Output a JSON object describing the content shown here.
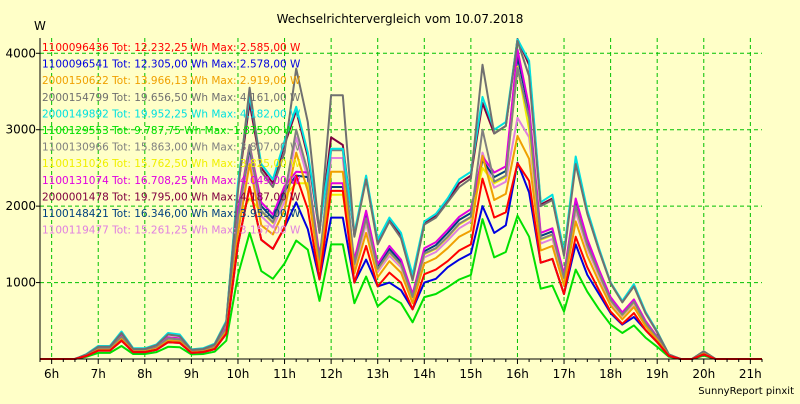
{
  "chart_data": {
    "type": "line",
    "title": "Wechselrichtervergleich vom 10.07.2018",
    "ylabel": "W",
    "xlabel": "",
    "ylim": [
      0,
      4200
    ],
    "xlim": [
      5.75,
      21.25
    ],
    "yticks": [
      1000,
      2000,
      3000,
      4000
    ],
    "xticks": [
      {
        "value": 6,
        "label": "6h"
      },
      {
        "value": 7,
        "label": "7h"
      },
      {
        "value": 8,
        "label": "8h"
      },
      {
        "value": 9,
        "label": "9h"
      },
      {
        "value": 10,
        "label": "10h"
      },
      {
        "value": 11,
        "label": "11h"
      },
      {
        "value": 12,
        "label": "12h"
      },
      {
        "value": 13,
        "label": "13h"
      },
      {
        "value": 14,
        "label": "14h"
      },
      {
        "value": 15,
        "label": "15h"
      },
      {
        "value": 16,
        "label": "16h"
      },
      {
        "value": 17,
        "label": "17h"
      },
      {
        "value": 18,
        "label": "18h"
      },
      {
        "value": 19,
        "label": "19h"
      },
      {
        "value": 20,
        "label": "20h"
      },
      {
        "value": 21,
        "label": "21h"
      }
    ],
    "grid": true,
    "legend_position": "top-left",
    "footer": "SunnyReport pinxit",
    "x": [
      5.75,
      6,
      6.25,
      6.5,
      6.75,
      7,
      7.25,
      7.5,
      7.75,
      8,
      8.25,
      8.5,
      8.75,
      9,
      9.25,
      9.5,
      9.75,
      10,
      10.25,
      10.5,
      10.75,
      11,
      11.25,
      11.5,
      11.75,
      12,
      12.25,
      12.5,
      12.75,
      13,
      13.25,
      13.5,
      13.75,
      14,
      14.25,
      14.5,
      14.75,
      15,
      15.25,
      15.5,
      15.75,
      16,
      16.25,
      16.5,
      16.75,
      17,
      17.25,
      17.5,
      17.75,
      18,
      18.25,
      18.5,
      18.75,
      19,
      19.25,
      19.5,
      19.75,
      20,
      20.25,
      20.5,
      20.75,
      21,
      21.25
    ],
    "series": [
      {
        "name": "1100096436 Tot: 12.232,25 Wh Max: 2.585,00 W",
        "color": "#ff0000",
        "values": [
          0,
          0,
          0,
          0,
          40,
          110,
          110,
          240,
          90,
          90,
          120,
          220,
          210,
          80,
          90,
          130,
          330,
          1500,
          2250,
          1560,
          1440,
          1720,
          2400,
          1960,
          1040,
          2200,
          2200,
          1000,
          1480,
          950,
          1130,
          1000,
          650,
          1110,
          1170,
          1280,
          1420,
          1500,
          2360,
          1850,
          1920,
          2560,
          2330,
          1260,
          1310,
          850,
          1600,
          1200,
          900,
          620,
          460,
          600,
          380,
          220,
          40,
          0,
          0,
          60,
          0,
          0,
          0,
          0,
          0
        ]
      },
      {
        "name": "1100096541 Tot: 12.305,00 Wh Max: 2.578,00 W",
        "color": "#0000e0",
        "values": [
          0,
          0,
          0,
          0,
          40,
          110,
          110,
          240,
          90,
          90,
          120,
          220,
          210,
          80,
          90,
          130,
          330,
          1500,
          2250,
          1560,
          1440,
          1720,
          2050,
          1700,
          1040,
          1850,
          1850,
          1000,
          1300,
          950,
          1000,
          900,
          650,
          1000,
          1050,
          1200,
          1300,
          1380,
          2000,
          1650,
          1750,
          2570,
          2180,
          1260,
          1310,
          850,
          1500,
          1100,
          850,
          600,
          450,
          550,
          380,
          220,
          40,
          0,
          0,
          60,
          0,
          0,
          0,
          0,
          0
        ]
      },
      {
        "name": "2000150622 Tot: 13.966,13 Wh Max: 2.919,00 W",
        "color": "#f0a000",
        "values": [
          0,
          0,
          0,
          0,
          45,
          120,
          120,
          260,
          100,
          100,
          135,
          240,
          230,
          90,
          100,
          145,
          360,
          1650,
          2550,
          1750,
          1630,
          1950,
          2700,
          2200,
          1170,
          2450,
          2450,
          1120,
          1650,
          1070,
          1280,
          1130,
          730,
          1250,
          1320,
          1450,
          1600,
          1680,
          2660,
          2080,
          2160,
          2919,
          2620,
          1420,
          1480,
          960,
          1800,
          1350,
          1010,
          700,
          520,
          680,
          430,
          250,
          45,
          0,
          0,
          70,
          0,
          0,
          0,
          0,
          0
        ]
      },
      {
        "name": "2000154799 Tot: 19.656,50 Wh Max: 4.161,00 W",
        "color": "#707070",
        "values": [
          0,
          0,
          0,
          0,
          60,
          160,
          160,
          340,
          130,
          130,
          180,
          320,
          300,
          120,
          130,
          190,
          480,
          2200,
          3550,
          2450,
          2250,
          2700,
          3800,
          3100,
          1650,
          3450,
          3450,
          1600,
          2350,
          1500,
          1800,
          1580,
          1030,
          1760,
          1850,
          2050,
          2250,
          2360,
          3850,
          2950,
          3050,
          4161,
          3700,
          2000,
          2080,
          1350,
          2550,
          1900,
          1420,
          990,
          740,
          950,
          600,
          350,
          60,
          0,
          0,
          100,
          0,
          0,
          0,
          0,
          0
        ]
      },
      {
        "name": "2000149892 Tot: 19.952,25 Wh Max: 4.182,00 W",
        "color": "#00e0e0",
        "values": [
          0,
          0,
          0,
          0,
          65,
          170,
          170,
          360,
          140,
          140,
          190,
          340,
          320,
          125,
          140,
          200,
          500,
          2300,
          3450,
          2550,
          2350,
          2850,
          3300,
          2700,
          1700,
          2750,
          2750,
          1650,
          2400,
          1560,
          1850,
          1650,
          1100,
          1800,
          1900,
          2100,
          2350,
          2450,
          3430,
          3000,
          3100,
          4182,
          3900,
          2050,
          2150,
          1400,
          2650,
          1950,
          1450,
          1000,
          760,
          980,
          620,
          360,
          60,
          0,
          0,
          100,
          0,
          0,
          0,
          0,
          0
        ]
      },
      {
        "name": "1100129553 Tot: 9.787,75 Wh Max: 1.875,00 W",
        "color": "#00e000",
        "values": [
          0,
          0,
          0,
          0,
          30,
          80,
          80,
          170,
          65,
          65,
          90,
          160,
          155,
          60,
          65,
          95,
          240,
          1100,
          1650,
          1150,
          1050,
          1250,
          1550,
          1430,
          760,
          1500,
          1500,
          730,
          1080,
          690,
          820,
          730,
          480,
          810,
          850,
          940,
          1040,
          1100,
          1830,
          1330,
          1400,
          1875,
          1600,
          920,
          960,
          620,
          1170,
          880,
          650,
          450,
          340,
          440,
          280,
          160,
          30,
          0,
          0,
          45,
          0,
          0,
          0,
          0,
          0
        ]
      },
      {
        "name": "1100130966 Tot: 15.863,00 Wh Max: 3.807,00 W",
        "color": "#808080",
        "values": [
          0,
          0,
          0,
          0,
          50,
          140,
          140,
          290,
          110,
          110,
          150,
          270,
          255,
          100,
          110,
          160,
          400,
          1850,
          2800,
          1940,
          1790,
          2140,
          3000,
          2450,
          1290,
          2730,
          2730,
          1240,
          1840,
          1180,
          1400,
          1240,
          810,
          1380,
          1450,
          1600,
          1770,
          1860,
          3000,
          2320,
          2400,
          3807,
          3150,
          1570,
          1630,
          1060,
          2000,
          1490,
          1120,
          770,
          580,
          750,
          470,
          280,
          50,
          0,
          0,
          80,
          0,
          0,
          0,
          0,
          0
        ]
      },
      {
        "name": "1100131026 Tot: 15.762,50 Wh Max: 3.825,00 W",
        "color": "#f0f000",
        "values": [
          0,
          0,
          0,
          0,
          50,
          140,
          140,
          290,
          110,
          110,
          150,
          270,
          255,
          100,
          110,
          160,
          400,
          1840,
          2100,
          1930,
          1780,
          2130,
          2300,
          2300,
          1280,
          2150,
          2150,
          1230,
          1830,
          1170,
          1390,
          1230,
          800,
          1370,
          1440,
          1590,
          1760,
          1850,
          2500,
          2300,
          2380,
          3825,
          3000,
          1560,
          1620,
          1050,
          1990,
          1480,
          1110,
          760,
          570,
          740,
          470,
          270,
          50,
          0,
          0,
          80,
          0,
          0,
          0,
          0,
          0
        ]
      },
      {
        "name": "1100131074 Tot: 16.708,25 Wh Max: 4.049,00 W",
        "color": "#e000e0",
        "values": [
          0,
          0,
          0,
          0,
          55,
          150,
          150,
          310,
          115,
          115,
          160,
          285,
          270,
          105,
          115,
          170,
          420,
          1950,
          2800,
          2050,
          1890,
          2260,
          2450,
          2440,
          1360,
          2300,
          2300,
          1300,
          1940,
          1240,
          1480,
          1300,
          850,
          1450,
          1530,
          1690,
          1860,
          1960,
          2650,
          2440,
          2520,
          4049,
          3300,
          1650,
          1710,
          1110,
          2100,
          1570,
          1170,
          810,
          610,
          780,
          500,
          290,
          55,
          0,
          0,
          85,
          0,
          0,
          0,
          0,
          0
        ]
      },
      {
        "name": "2000001478 Tot: 19.795,00 Wh Max: 4.187,00 W",
        "color": "#800040",
        "values": [
          0,
          0,
          0,
          0,
          60,
          165,
          165,
          350,
          135,
          135,
          185,
          330,
          310,
          120,
          135,
          195,
          490,
          2250,
          3350,
          2500,
          2300,
          2800,
          3250,
          2650,
          1670,
          2900,
          2800,
          1620,
          2380,
          1530,
          1820,
          1610,
          1060,
          1780,
          1870,
          2070,
          2300,
          2400,
          3350,
          2950,
          3050,
          4187,
          3850,
          2020,
          2100,
          1370,
          2600,
          1920,
          1430,
          1000,
          750,
          960,
          610,
          350,
          60,
          0,
          0,
          100,
          0,
          0,
          0,
          0,
          0
        ]
      },
      {
        "name": "1100148421 Tot: 16.346,00 Wh Max: 3.953,00 W",
        "color": "#004080",
        "values": [
          0,
          0,
          0,
          0,
          52,
          145,
          145,
          300,
          112,
          112,
          155,
          278,
          262,
          102,
          112,
          165,
          410,
          1900,
          2750,
          2000,
          1840,
          2200,
          2400,
          2380,
          1330,
          2250,
          2250,
          1270,
          1890,
          1210,
          1440,
          1270,
          830,
          1410,
          1490,
          1650,
          1820,
          1910,
          2600,
          2380,
          2460,
          3953,
          3250,
          1610,
          1670,
          1080,
          2050,
          1530,
          1150,
          790,
          590,
          760,
          490,
          280,
          52,
          0,
          0,
          83,
          0,
          0,
          0,
          0,
          0
        ]
      },
      {
        "name": "1100119477 Tot: 15.261,25 Wh Max: 3.157,00 W",
        "color": "#e080e0",
        "values": [
          0,
          0,
          0,
          0,
          48,
          135,
          135,
          280,
          105,
          105,
          145,
          260,
          245,
          96,
          105,
          155,
          385,
          1780,
          2650,
          1870,
          1720,
          2060,
          2900,
          2360,
          1250,
          2630,
          2630,
          1200,
          1770,
          1140,
          1350,
          1200,
          780,
          1330,
          1400,
          1550,
          1710,
          1800,
          2700,
          2240,
          2320,
          3157,
          2900,
          1510,
          1570,
          1020,
          1930,
          1440,
          1080,
          740,
          560,
          720,
          460,
          270,
          48,
          0,
          0,
          77,
          0,
          0,
          0,
          0,
          0
        ]
      }
    ]
  }
}
